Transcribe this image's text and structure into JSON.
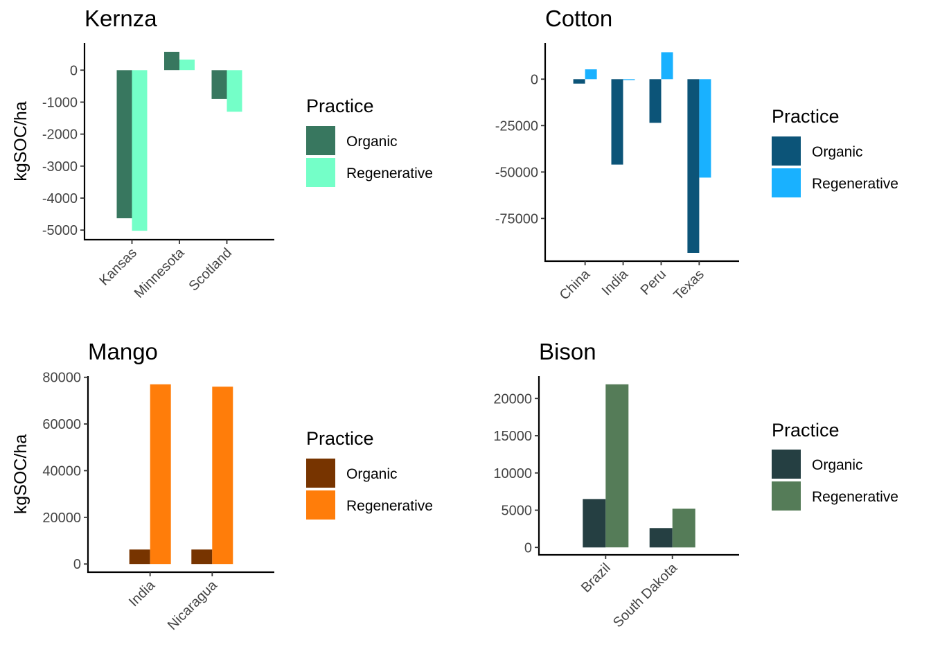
{
  "chart_data": [
    {
      "type": "bar",
      "title": "Kernza",
      "ylabel": "kgSOC/ha",
      "xlabel": "",
      "categories": [
        "Kansas",
        "Minnesota",
        "Scotland"
      ],
      "ylim": [
        -5300,
        850
      ],
      "yticks": [
        0,
        -1000,
        -2000,
        -3000,
        -4000,
        -5000
      ],
      "ytick_labels": [
        "0",
        "-1000",
        "-2000",
        "-3000",
        "-4000",
        "-5000"
      ],
      "series": [
        {
          "name": "Organic",
          "color": "#38775f",
          "values": [
            -4630,
            570,
            -900
          ]
        },
        {
          "name": "Regenerative",
          "color": "#74ffc8",
          "values": [
            -5020,
            330,
            -1300
          ]
        }
      ],
      "legend": {
        "title": "Practice",
        "placement": "right"
      }
    },
    {
      "type": "bar",
      "title": "Cotton",
      "ylabel": "",
      "xlabel": "",
      "categories": [
        "China",
        "India",
        "Peru",
        "Texas"
      ],
      "ylim": [
        -98000,
        19500
      ],
      "yticks": [
        0,
        -25000,
        -50000,
        -75000
      ],
      "ytick_labels": [
        "0",
        "-25000",
        "-50000",
        "-75000"
      ],
      "series": [
        {
          "name": "Organic",
          "color": "#0c5478",
          "values": [
            -2400,
            -46000,
            -23500,
            -93500
          ]
        },
        {
          "name": "Regenerative",
          "color": "#19b1ff",
          "values": [
            5300,
            -500,
            14500,
            -53000
          ]
        }
      ],
      "legend": {
        "title": "Practice",
        "placement": "right"
      }
    },
    {
      "type": "bar",
      "title": "Mango",
      "ylabel": "kgSOC/ha",
      "xlabel": "",
      "categories": [
        "India",
        "Nicaragua"
      ],
      "ylim": [
        -3500,
        80500
      ],
      "yticks": [
        0,
        20000,
        40000,
        60000,
        80000
      ],
      "ytick_labels": [
        "0",
        "20000",
        "40000",
        "60000",
        "80000"
      ],
      "series": [
        {
          "name": "Organic",
          "color": "#773400",
          "values": [
            6200,
            6200
          ]
        },
        {
          "name": "Regenerative",
          "color": "#ff7d0a",
          "values": [
            77000,
            76000
          ]
        }
      ],
      "legend": {
        "title": "Practice",
        "placement": "right"
      }
    },
    {
      "type": "bar",
      "title": "Bison",
      "ylabel": "",
      "xlabel": "",
      "categories": [
        "Brazil",
        "South Dakota"
      ],
      "ylim": [
        -1000,
        23000
      ],
      "yticks": [
        0,
        5000,
        10000,
        15000,
        20000
      ],
      "ytick_labels": [
        "0",
        "5000",
        "10000",
        "15000",
        "20000"
      ],
      "series": [
        {
          "name": "Organic",
          "color": "#253f42",
          "values": [
            6500,
            2600
          ]
        },
        {
          "name": "Regenerative",
          "color": "#557c58",
          "values": [
            21900,
            5200
          ]
        }
      ],
      "legend": {
        "title": "Practice",
        "placement": "right"
      }
    }
  ]
}
